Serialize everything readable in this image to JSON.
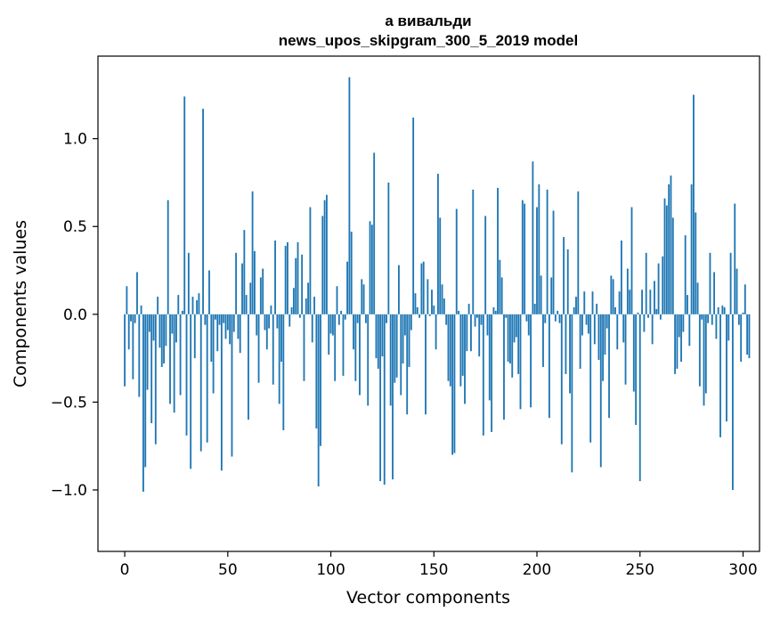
{
  "chart_data": {
    "type": "bar",
    "title": "а вивальди",
    "subtitle": "news_upos_skipgram_300_5_2019 model",
    "xlabel": "Vector components",
    "ylabel": "Components values",
    "xlim": [
      -13,
      308
    ],
    "ylim": [
      -1.35,
      1.47
    ],
    "xticks": [
      0,
      50,
      100,
      150,
      200,
      250,
      300
    ],
    "xtick_labels": [
      "0",
      "50",
      "100",
      "150",
      "200",
      "250",
      "300"
    ],
    "yticks": [
      -1.0,
      -0.5,
      0.0,
      0.5,
      1.0
    ],
    "ytick_labels": [
      "−1.0",
      "−0.5",
      "0.0",
      "0.5",
      "1.0"
    ],
    "grid": false,
    "color": "#1f77b4",
    "values": [
      -0.41,
      0.16,
      -0.2,
      -0.04,
      -0.37,
      -0.05,
      0.24,
      -0.47,
      0.05,
      -1.01,
      -0.87,
      -0.43,
      -0.1,
      -0.62,
      -0.15,
      -0.74,
      0.1,
      -0.19,
      -0.3,
      -0.28,
      -0.18,
      0.65,
      -0.51,
      -0.11,
      -0.56,
      -0.16,
      0.11,
      -0.46,
      0.02,
      1.24,
      -0.69,
      0.35,
      -0.88,
      0.1,
      -0.25,
      0.08,
      0.12,
      -0.78,
      1.17,
      -0.06,
      -0.73,
      0.25,
      -0.27,
      -0.45,
      -0.03,
      -0.21,
      -0.06,
      -0.89,
      -0.05,
      -0.14,
      -0.09,
      -0.17,
      -0.81,
      -0.1,
      0.35,
      -0.14,
      -0.22,
      0.29,
      0.48,
      0.11,
      -0.6,
      0.18,
      0.7,
      0.36,
      -0.12,
      -0.39,
      0.21,
      0.26,
      -0.09,
      -0.2,
      -0.08,
      0.05,
      -0.4,
      0.42,
      -0.08,
      -0.51,
      -0.27,
      -0.66,
      0.39,
      0.41,
      -0.07,
      0.04,
      0.15,
      0.32,
      0.41,
      -0.02,
      0.34,
      -0.38,
      0.09,
      0.18,
      0.61,
      -0.16,
      0.1,
      -0.65,
      -0.98,
      -0.75,
      0.56,
      0.65,
      0.68,
      -0.23,
      -0.11,
      -0.12,
      -0.38,
      0.16,
      -0.06,
      0.02,
      -0.35,
      -0.03,
      0.3,
      1.35,
      0.47,
      -0.2,
      -0.38,
      -0.05,
      -0.46,
      0.2,
      0.17,
      -0.05,
      -0.52,
      0.53,
      0.51,
      0.92,
      -0.25,
      -0.31,
      -0.95,
      -0.24,
      -0.97,
      -0.05,
      0.75,
      -0.52,
      -0.94,
      -0.39,
      -0.36,
      0.28,
      -0.46,
      -0.28,
      -0.12,
      -0.57,
      -0.3,
      -0.09,
      1.12,
      0.12,
      0.04,
      -0.02,
      0.29,
      0.3,
      -0.57,
      0.2,
      -0.01,
      0.14,
      0.05,
      -0.2,
      0.8,
      0.55,
      0.17,
      0.09,
      -0.06,
      -0.38,
      -0.41,
      -0.8,
      -0.79,
      0.6,
      0.02,
      -0.41,
      -0.35,
      -0.51,
      -0.21,
      0.06,
      -0.21,
      0.71,
      -0.07,
      -0.02,
      -0.24,
      -0.06,
      -0.69,
      0.56,
      -0.12,
      -0.49,
      -0.67,
      0.04,
      0.02,
      0.72,
      0.31,
      0.21,
      -0.6,
      -0.02,
      -0.27,
      -0.28,
      -0.36,
      -0.16,
      -0.13,
      -0.34,
      -0.54,
      0.65,
      0.63,
      -0.04,
      -0.12,
      -0.53,
      0.87,
      0.06,
      0.61,
      0.74,
      0.22,
      -0.3,
      -0.05,
      0.71,
      -0.59,
      0.21,
      0.59,
      -0.04,
      0.02,
      -0.05,
      -0.74,
      0.44,
      -0.34,
      0.37,
      -0.45,
      -0.9,
      0.04,
      0.1,
      0.7,
      -0.31,
      -0.12,
      0.13,
      -0.06,
      -0.11,
      -0.73,
      0.13,
      -0.17,
      0.06,
      -0.26,
      -0.87,
      -0.38,
      -0.23,
      -0.08,
      -0.59,
      0.22,
      0.2,
      0.04,
      -0.2,
      0.13,
      0.42,
      -0.16,
      -0.4,
      0.26,
      0.14,
      0.61,
      -0.44,
      -0.63,
      0.01,
      -0.95,
      0.14,
      -0.1,
      0.35,
      -0.02,
      0.14,
      -0.17,
      0.19,
      0.03,
      0.29,
      -0.03,
      0.33,
      0.66,
      0.62,
      0.74,
      0.79,
      0.55,
      -0.34,
      -0.31,
      -0.13,
      -0.27,
      -0.1,
      0.45,
      0.11,
      -0.18,
      0.74,
      1.25,
      0.58,
      0.18,
      -0.41,
      -0.03,
      -0.52,
      -0.45,
      -0.05,
      0.35,
      -0.06,
      0.24,
      -0.14,
      0.04,
      -0.7,
      0.05,
      0.04,
      -0.61,
      -0.15,
      0.35,
      -1.0,
      0.63,
      0.26,
      -0.06,
      -0.27,
      0.01,
      0.17,
      -0.23,
      -0.25
    ]
  }
}
